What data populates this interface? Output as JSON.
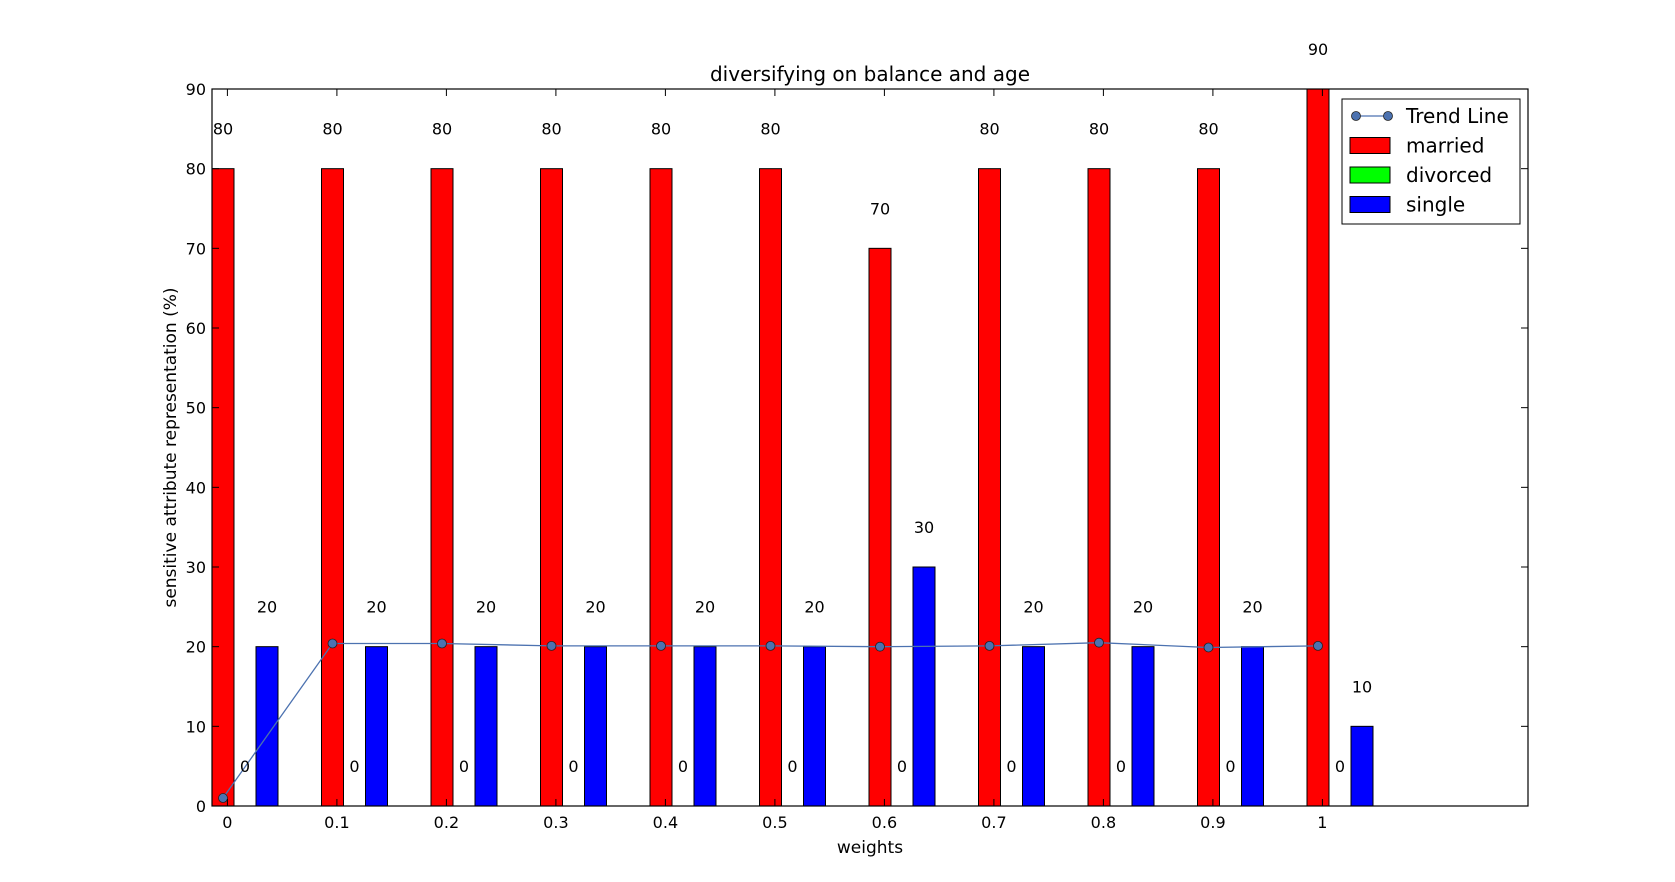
{
  "chart_data": {
    "type": "bar",
    "title": "diversifying on balance and age",
    "xlabel": "weights",
    "ylabel": "sensitive attribute representation (%)",
    "categories": [
      "0",
      "0.1",
      "0.2",
      "0.3",
      "0.4",
      "0.5",
      "0.6",
      "0.7",
      "0.8",
      "0.9",
      "1"
    ],
    "ylim": [
      0,
      90
    ],
    "yticks": [
      0,
      10,
      20,
      30,
      40,
      50,
      60,
      70,
      80,
      90
    ],
    "grid": false,
    "legend_position": "top-right",
    "series": [
      {
        "name": "married",
        "type": "bar",
        "color": "#ff0000",
        "values": [
          80,
          80,
          80,
          80,
          80,
          80,
          70,
          80,
          80,
          80,
          90
        ]
      },
      {
        "name": "divorced",
        "type": "bar",
        "color": "#00ff00",
        "values": [
          0,
          0,
          0,
          0,
          0,
          0,
          0,
          0,
          0,
          0,
          0
        ]
      },
      {
        "name": "single",
        "type": "bar",
        "color": "#0000ff",
        "values": [
          20,
          20,
          20,
          20,
          20,
          20,
          30,
          20,
          20,
          20,
          10
        ]
      },
      {
        "name": "Trend Line",
        "type": "line",
        "color": "#4c72b0",
        "values": [
          1,
          20.4,
          20.4,
          20.1,
          20.1,
          20.1,
          20,
          20.1,
          20.5,
          19.9,
          20.1
        ]
      }
    ],
    "legend": [
      "Trend Line",
      "married",
      "divorced",
      "single"
    ]
  }
}
